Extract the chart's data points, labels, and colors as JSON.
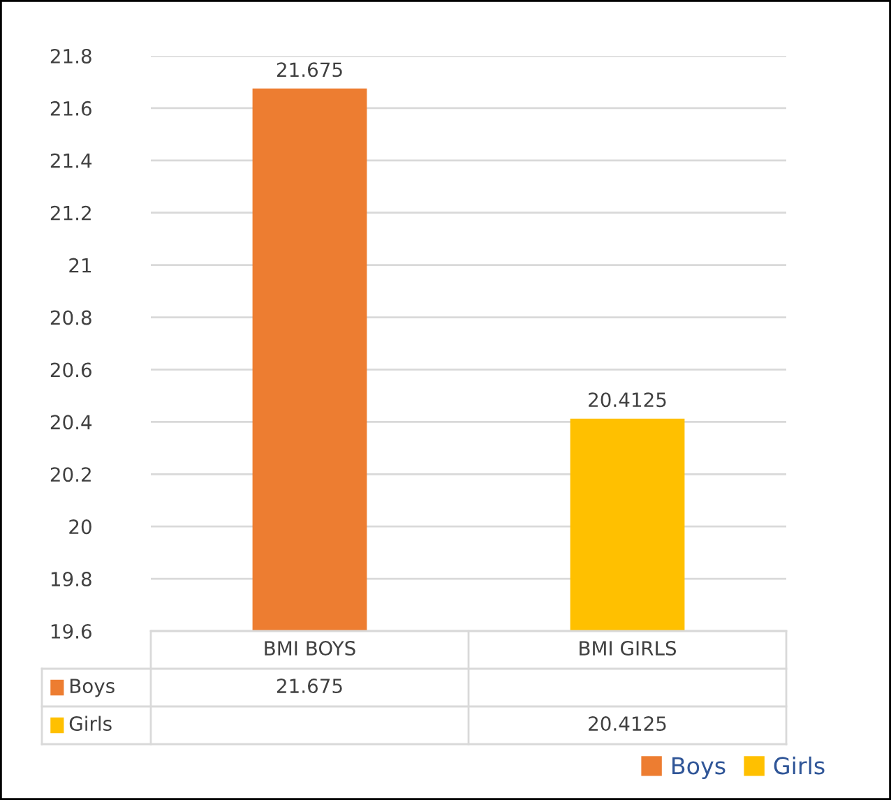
{
  "chart_data": {
    "type": "bar",
    "categories": [
      "BMI BOYS",
      "BMI GIRLS"
    ],
    "series": [
      {
        "name": "Boys",
        "color": "#ed7d31",
        "values": [
          21.675,
          null
        ]
      },
      {
        "name": "Girls",
        "color": "#ffc000",
        "values": [
          null,
          20.4125
        ]
      }
    ],
    "ylim": [
      19.6,
      21.8
    ],
    "yticks": [
      19.6,
      19.8,
      20,
      20.2,
      20.4,
      20.6,
      20.8,
      21,
      21.2,
      21.4,
      21.6,
      21.8
    ],
    "annotations": [
      "21.675",
      "20.4125"
    ],
    "grid": "y",
    "data_labels": true,
    "legend": "bottom right"
  }
}
